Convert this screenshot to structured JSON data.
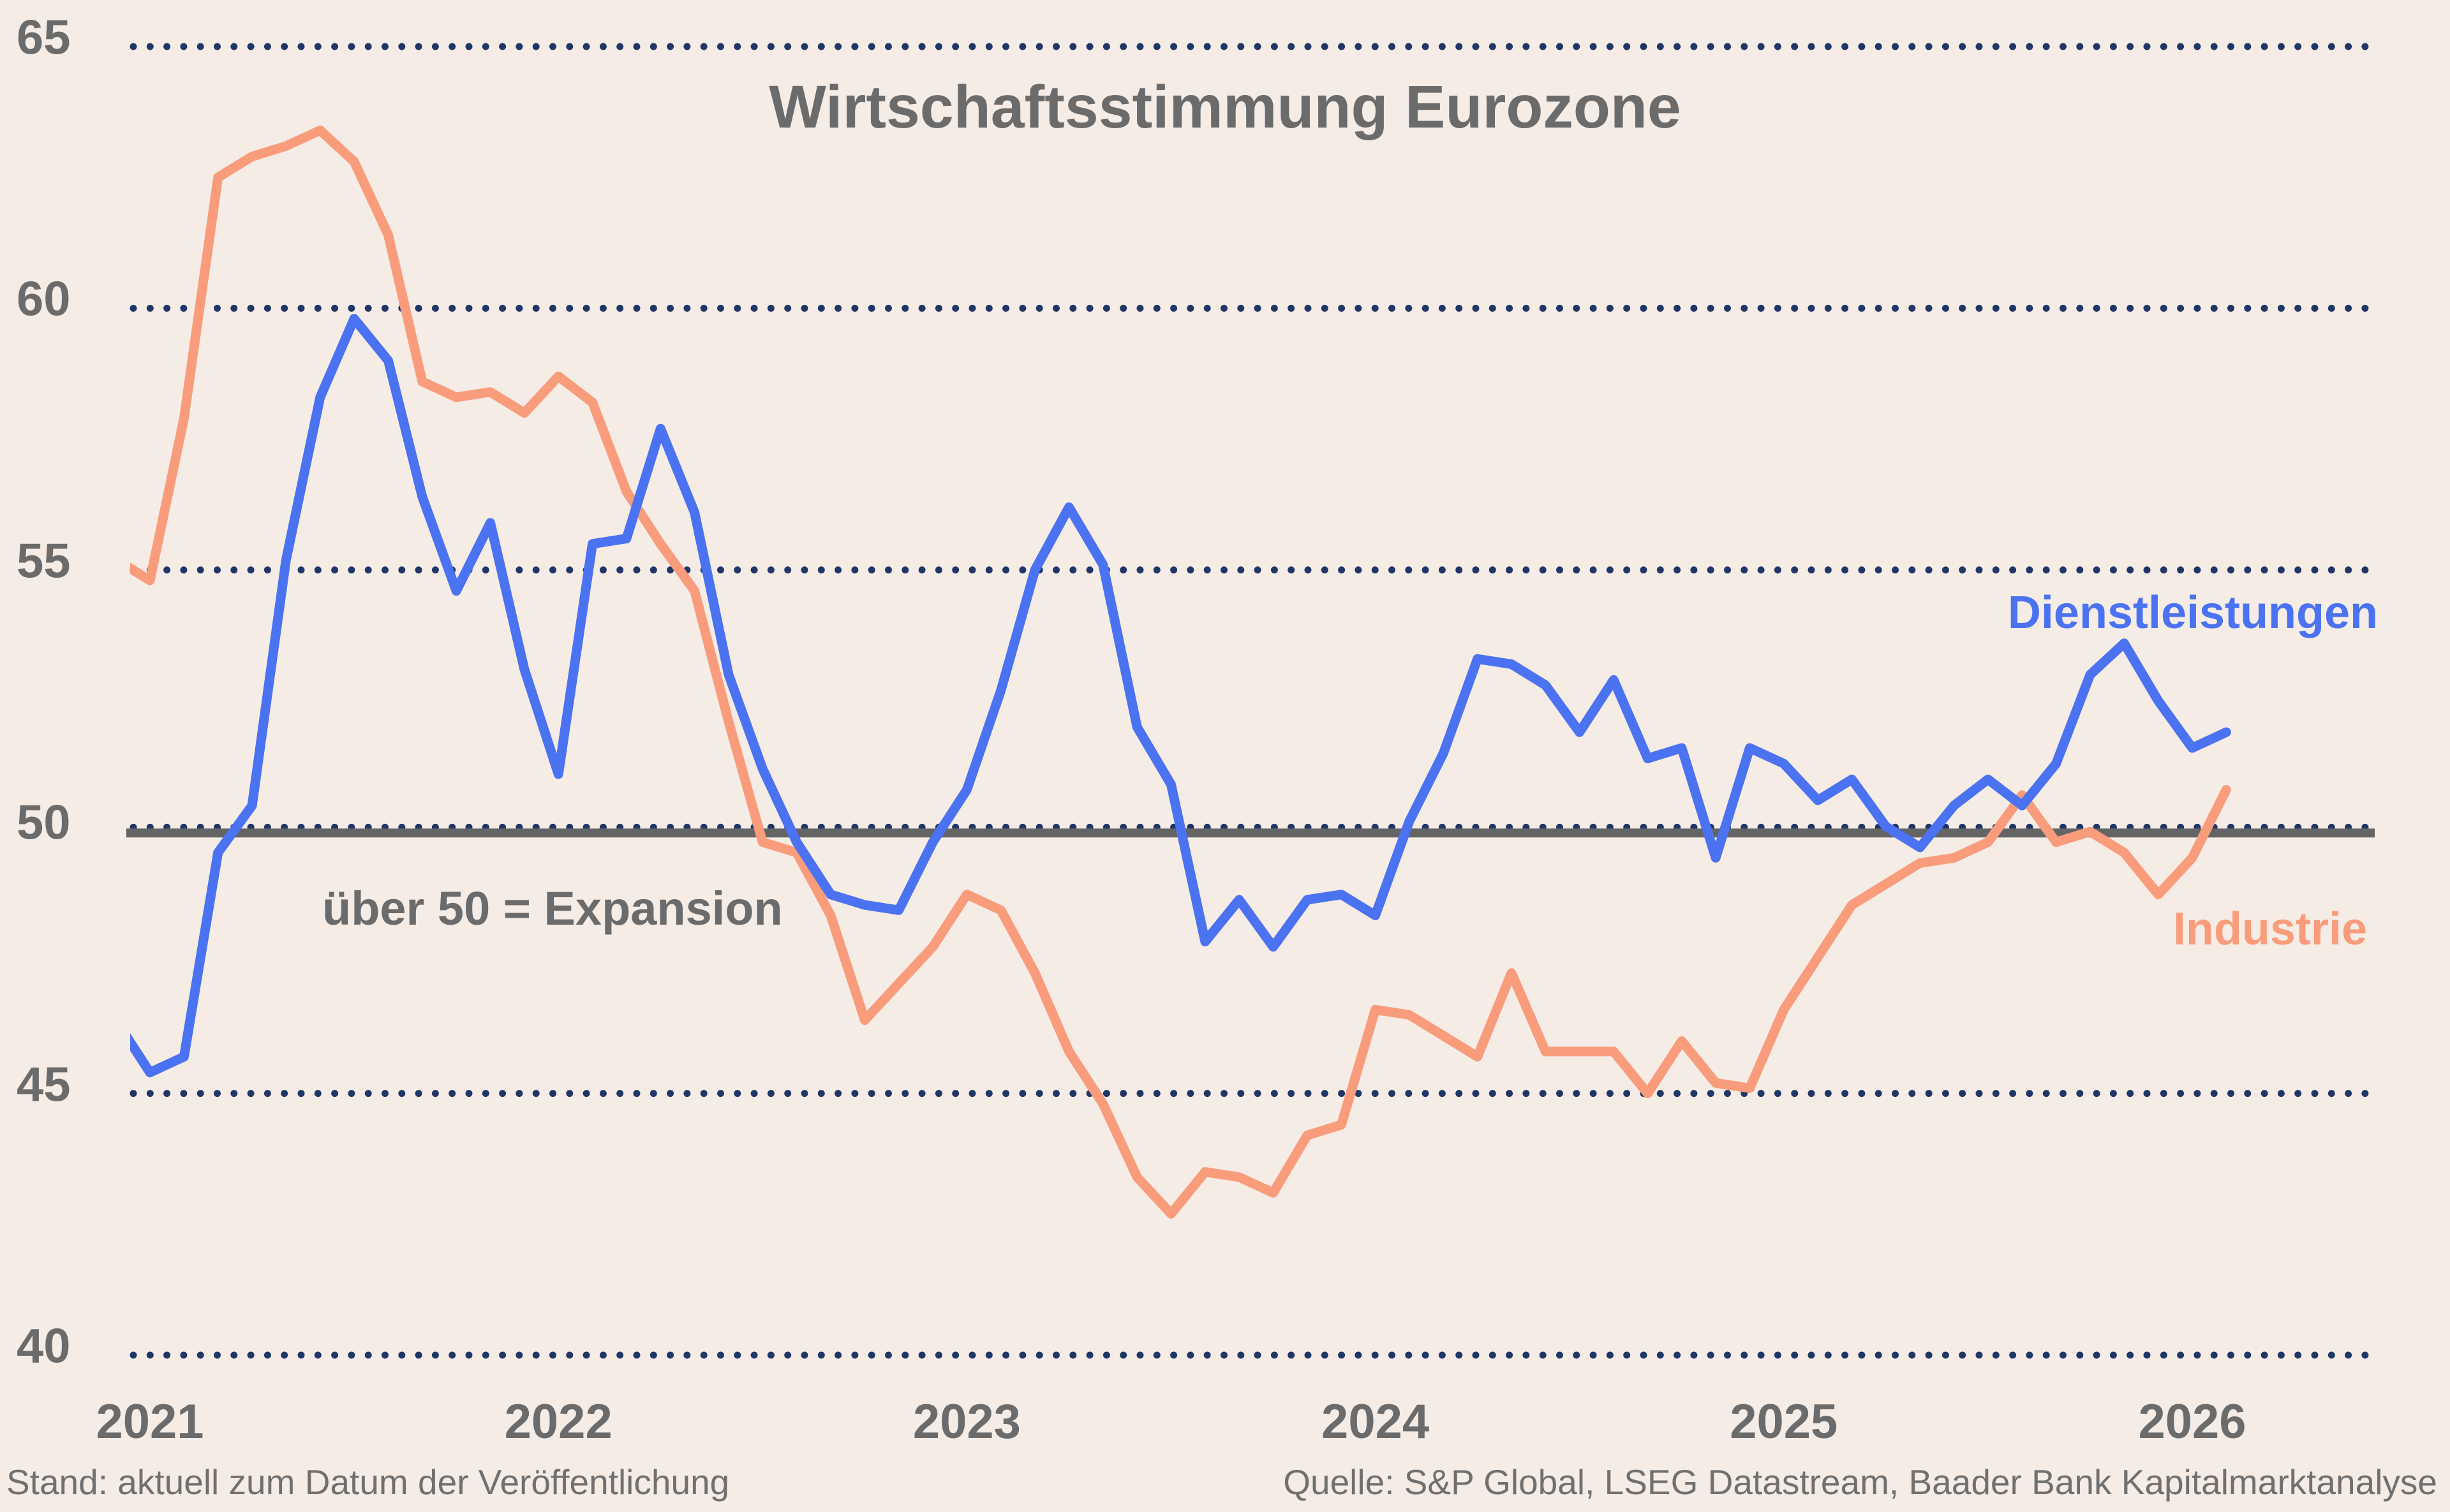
{
  "footer": {
    "left": "Stand: aktuell zum Datum der Veröffentlichung",
    "right": "Quelle: S&P Global, LSEG Datastream, Baader Bank Kapitalmarktanalyse"
  },
  "colors": {
    "background": "#f5ece6",
    "services": "#4b72f0",
    "industry": "#f99c7c",
    "grid_dot": "#203667",
    "reference_line": "#646464",
    "text": "#6b6b6b",
    "footer_text": "#707070"
  },
  "chart_data": {
    "type": "line",
    "title": "Wirtschaftsstimmung Eurozone",
    "xlabel": "",
    "ylabel": "",
    "y_ticks": [
      65,
      60,
      55,
      50,
      45,
      40
    ],
    "ylim": [
      40,
      65
    ],
    "grid": "dotted horizontal lines at each y tick",
    "legend_position": "labels next to line ends, right side",
    "x_tick_labels": [
      "2021",
      "2022",
      "2023",
      "2024",
      "2025",
      "2026"
    ],
    "frequency": "monthly",
    "first_point": "2020-12",
    "last_point": "2026-02",
    "reference_line": {
      "value": 50,
      "label": "über 50 = Expansion"
    },
    "series": [
      {
        "name": "Dienstleistungen",
        "color": "#4b72f0",
        "values": [
          46.4,
          45.4,
          45.7,
          49.6,
          50.5,
          55.2,
          58.3,
          59.8,
          59.0,
          56.4,
          54.6,
          55.9,
          53.1,
          51.1,
          55.5,
          55.6,
          57.7,
          56.1,
          53.0,
          51.2,
          49.8,
          48.8,
          48.6,
          48.5,
          49.8,
          50.8,
          52.7,
          55.0,
          56.2,
          55.1,
          52.0,
          50.9,
          47.9,
          48.7,
          47.8,
          48.7,
          48.8,
          48.4,
          50.2,
          51.5,
          53.3,
          53.2,
          52.8,
          51.9,
          52.9,
          51.4,
          51.6,
          49.5,
          51.6,
          51.3,
          50.6,
          51.0,
          50.1,
          49.7,
          50.5,
          51.0,
          50.5,
          51.3,
          53.0,
          53.6,
          52.5,
          51.6,
          51.9
        ]
      },
      {
        "name": "Industrie",
        "color": "#f99c7c",
        "values": [
          55.2,
          54.8,
          57.9,
          62.5,
          62.9,
          63.1,
          63.4,
          62.8,
          61.4,
          58.6,
          58.3,
          58.4,
          58.0,
          58.7,
          58.2,
          56.5,
          55.5,
          54.6,
          52.1,
          49.8,
          49.6,
          48.4,
          46.4,
          47.1,
          47.8,
          48.8,
          48.5,
          47.3,
          45.8,
          44.8,
          43.4,
          42.7,
          43.5,
          43.4,
          43.1,
          44.2,
          44.4,
          46.6,
          46.5,
          46.1,
          45.7,
          47.3,
          45.8,
          45.8,
          45.8,
          45.0,
          46.0,
          45.2,
          45.1,
          46.6,
          47.6,
          48.6,
          49.0,
          49.4,
          49.5,
          49.8,
          50.7,
          49.8,
          50.0,
          49.6,
          48.8,
          49.5,
          50.8
        ]
      }
    ]
  }
}
